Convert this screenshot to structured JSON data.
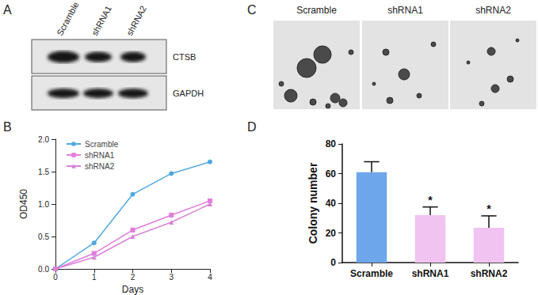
{
  "panel_labels": [
    "A",
    "B",
    "C",
    "D"
  ],
  "western_blot": {
    "lanes": [
      "Scramble",
      "shRNA1",
      "shRNA2"
    ],
    "bands": [
      "CTSB",
      "GAPDH"
    ]
  },
  "colony_images": {
    "labels": [
      "Scramble",
      "shRNA1",
      "shRNA2"
    ]
  },
  "chart_data": [
    {
      "type": "line",
      "x": [
        0,
        1,
        2,
        3,
        4
      ],
      "xlabel": "Days",
      "ylabel": "OD450",
      "xlim": [
        0,
        4
      ],
      "xticks": [
        0,
        1,
        2,
        3,
        4
      ],
      "ylim": [
        0,
        2
      ],
      "yticks": [
        {
          "value": 0,
          "label": "0.0"
        },
        0.5,
        {
          "value": 1,
          "label": "1.0"
        },
        1.5,
        {
          "value": 2,
          "label": "2.0"
        }
      ],
      "grid": false,
      "legend": "top-left",
      "series": [
        {
          "name": "Scramble",
          "color": "#4fa8e0",
          "marker": "circle",
          "values": [
            0,
            0.4,
            1.15,
            1.47,
            1.65
          ]
        },
        {
          "name": "shRNA1",
          "color": "#e27ddb",
          "marker": "square",
          "values": [
            0,
            0.24,
            0.6,
            0.83,
            1.05
          ]
        },
        {
          "name": "shRNA2",
          "color": "#d983d6",
          "marker": "triangle",
          "values": [
            0,
            0.18,
            0.5,
            0.72,
            1.0
          ]
        }
      ]
    },
    {
      "type": "bar",
      "categories": [
        "Scramble",
        "shRNA1",
        "shRNA2"
      ],
      "values": [
        61,
        32,
        23.5
      ],
      "errors": [
        7,
        5.5,
        8
      ],
      "colors": [
        "#6ea6ec",
        "#f1c3f1",
        "#f1c3f1"
      ],
      "ylabel": "Colony number",
      "ylim": [
        0,
        80
      ],
      "yticks": [
        0,
        20,
        40,
        60,
        80
      ],
      "grid": false,
      "annotations": [
        {
          "category": "shRNA1",
          "text": "*"
        },
        {
          "category": "shRNA2",
          "text": "*"
        }
      ]
    }
  ]
}
